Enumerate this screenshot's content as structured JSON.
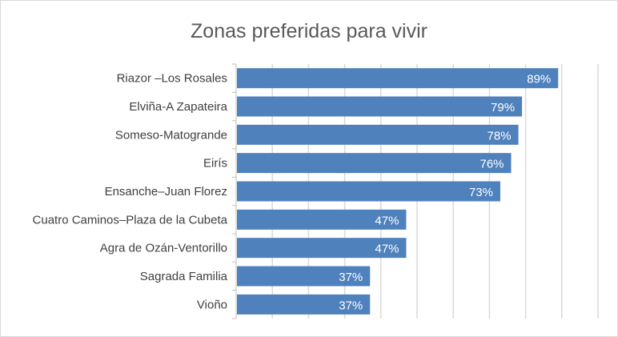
{
  "chart_data": {
    "type": "bar",
    "orientation": "horizontal",
    "title": "Zonas preferidas para vivir",
    "categories": [
      "Riazor –Los Rosales",
      "Elviña-A Zapateira",
      "Someso-Matogrande",
      "Eirís",
      "Ensanche–Juan Florez",
      "Cuatro Caminos–Plaza de la Cubeta",
      "Agra de Ozán-Ventorillo",
      "Sagrada Familia",
      "Vioño"
    ],
    "values": [
      89,
      79,
      78,
      76,
      73,
      47,
      47,
      37,
      37
    ],
    "data_labels": [
      "89%",
      "79%",
      "78%",
      "76%",
      "73%",
      "47%",
      "47%",
      "37%",
      "37%"
    ],
    "xlim": [
      0,
      100
    ],
    "x_tick_labels_shown": false,
    "grid": true,
    "bar_color": "#4f81bd",
    "grid_color": "#d9d9d9"
  }
}
